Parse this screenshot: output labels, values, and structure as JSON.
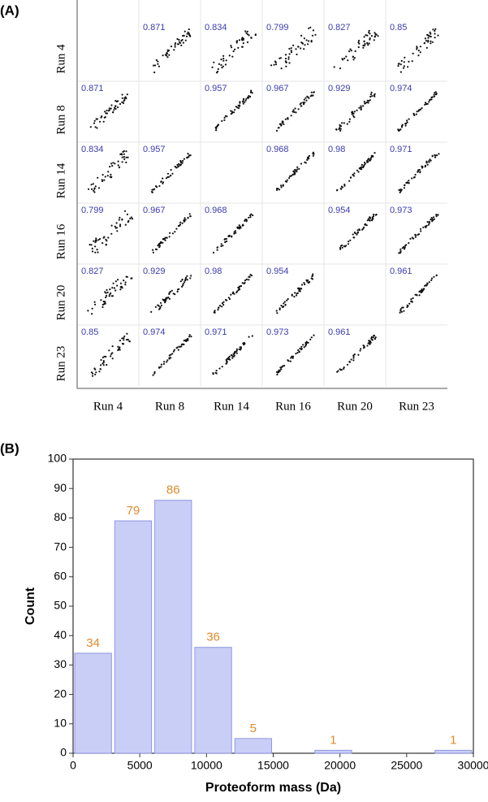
{
  "chart_data": [
    {
      "type": "scatter_matrix",
      "panel_label": "(A)",
      "variables": [
        "Run 4",
        "Run 8",
        "Run 14",
        "Run 16",
        "Run 20",
        "Run 23"
      ],
      "correlations": [
        [
          null,
          0.871,
          0.834,
          0.799,
          0.827,
          0.85
        ],
        [
          0.871,
          null,
          0.957,
          0.967,
          0.929,
          0.974
        ],
        [
          0.834,
          0.957,
          null,
          0.968,
          0.98,
          0.971
        ],
        [
          0.799,
          0.967,
          0.968,
          null,
          0.954,
          0.973
        ],
        [
          0.827,
          0.929,
          0.98,
          0.954,
          null,
          0.961
        ],
        [
          0.85,
          0.974,
          0.971,
          0.973,
          0.961,
          null
        ]
      ],
      "label_color": "#3b3bb0"
    },
    {
      "type": "histogram",
      "panel_label": "(B)",
      "bins": [
        0,
        3000,
        6000,
        9000,
        12000,
        15000,
        18000,
        21000,
        24000,
        27000,
        30000
      ],
      "values": [
        34,
        79,
        86,
        36,
        5,
        0,
        1,
        0,
        0,
        1
      ],
      "xlabel": "Proteoform mass (Da)",
      "ylabel": "Count",
      "xlim": [
        0,
        30000
      ],
      "xticks": [
        0,
        5000,
        10000,
        15000,
        20000,
        25000,
        30000
      ],
      "ylim": [
        0,
        100
      ],
      "yticks": [
        0,
        10,
        20,
        30,
        40,
        50,
        60,
        70,
        80,
        90,
        100
      ],
      "color": "#c9cef6",
      "edge_color": "#8f97e2",
      "label_color": "#e08a2c"
    }
  ]
}
